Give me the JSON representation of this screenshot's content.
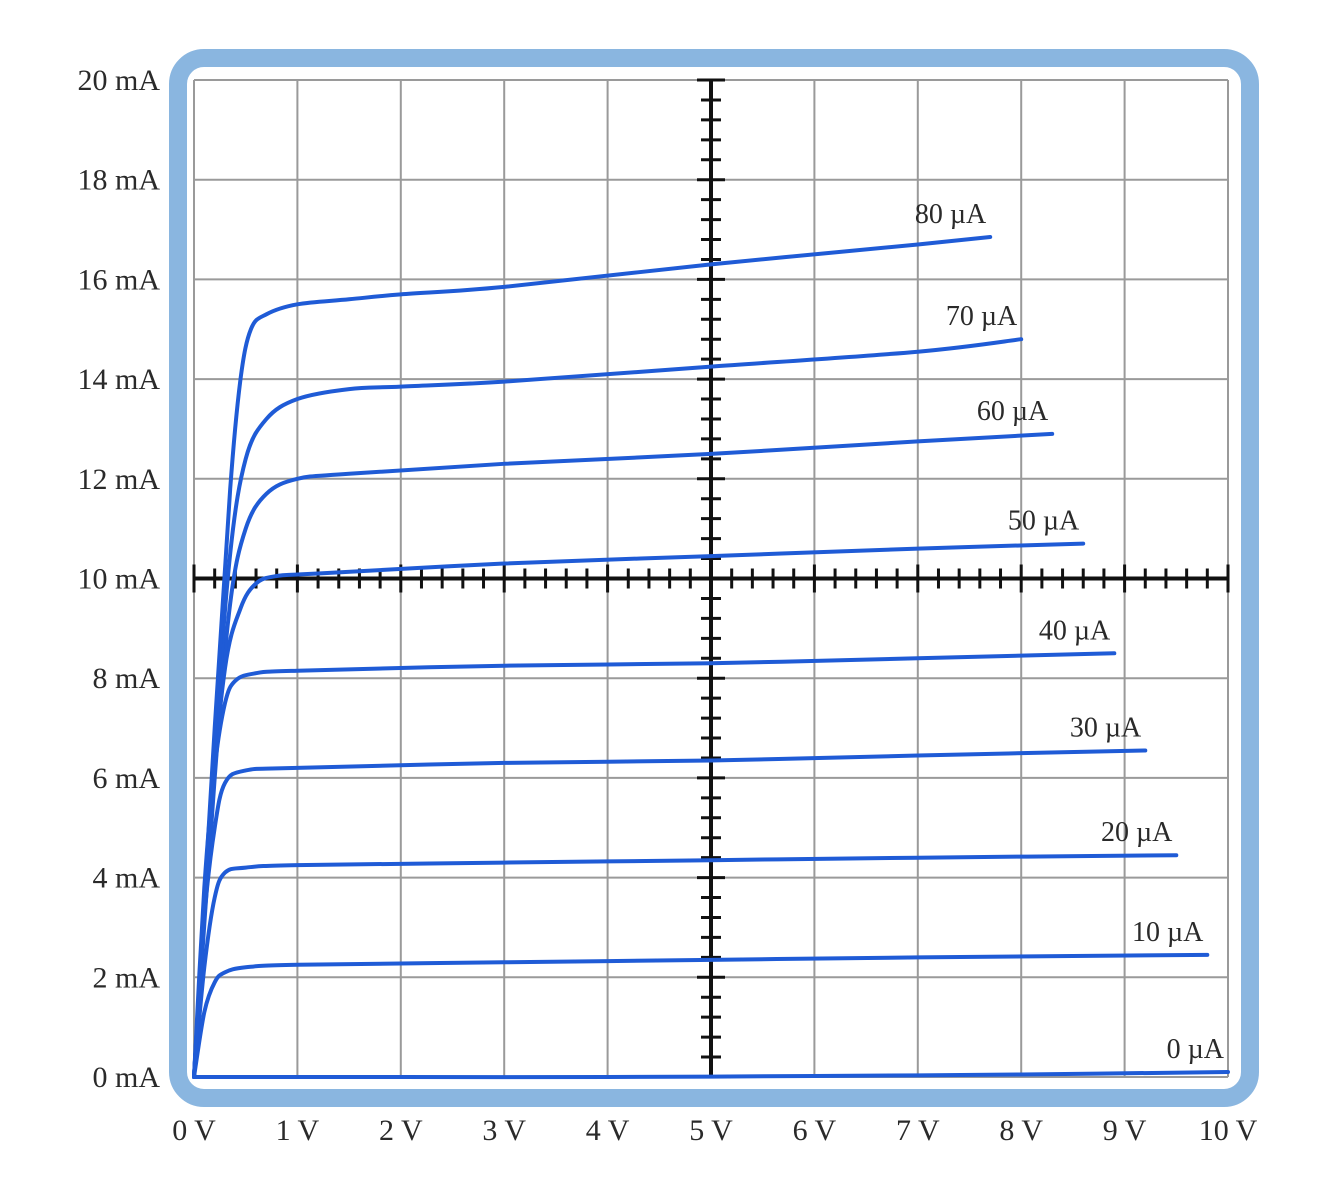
{
  "chart_data": {
    "type": "line",
    "title": "",
    "xlabel": "",
    "ylabel": "",
    "xlim": [
      0,
      10
    ],
    "ylim": [
      0,
      20
    ],
    "grid": true,
    "x_tick_labels": [
      "0 V",
      "1 V",
      "2 V",
      "3 V",
      "4 V",
      "5 V",
      "6 V",
      "7 V",
      "8 V",
      "9 V",
      "10 V"
    ],
    "y_tick_labels": [
      "0 mA",
      "2 mA",
      "4 mA",
      "6 mA",
      "8 mA",
      "10 mA",
      "12 mA",
      "14 mA",
      "16 mA",
      "18 mA",
      "20 mA"
    ],
    "colors": {
      "curve": "#1f5bd6",
      "frame": "#8ab6e0",
      "grid": "#9a9a9a",
      "crosshair": "#111111"
    },
    "series": [
      {
        "name": "0 µA",
        "x": [
          0,
          2,
          4,
          6,
          8,
          10
        ],
        "y": [
          0,
          0,
          0,
          0.02,
          0.05,
          0.1
        ]
      },
      {
        "name": "10 µA",
        "x": [
          0,
          0.1,
          0.2,
          0.3,
          0.5,
          1,
          3,
          5,
          7,
          9.8
        ],
        "y": [
          0,
          1.3,
          1.9,
          2.1,
          2.2,
          2.25,
          2.3,
          2.35,
          2.4,
          2.45
        ]
      },
      {
        "name": "20 µA",
        "x": [
          0,
          0.1,
          0.2,
          0.3,
          0.5,
          1,
          3,
          5,
          7,
          9.5
        ],
        "y": [
          0,
          2.2,
          3.6,
          4.1,
          4.2,
          4.25,
          4.3,
          4.35,
          4.4,
          4.45
        ]
      },
      {
        "name": "30 µA",
        "x": [
          0,
          0.1,
          0.2,
          0.3,
          0.5,
          1,
          3,
          5,
          7,
          9.2
        ],
        "y": [
          0,
          3.2,
          5.0,
          5.9,
          6.15,
          6.2,
          6.3,
          6.35,
          6.45,
          6.55
        ]
      },
      {
        "name": "40 µA",
        "x": [
          0,
          0.1,
          0.2,
          0.3,
          0.4,
          0.6,
          1,
          3,
          5,
          7,
          8.9
        ],
        "y": [
          0,
          3.8,
          6.2,
          7.5,
          7.95,
          8.1,
          8.15,
          8.25,
          8.3,
          8.4,
          8.5
        ]
      },
      {
        "name": "50 µA",
        "x": [
          0,
          0.15,
          0.3,
          0.45,
          0.6,
          0.8,
          1.2,
          3,
          5,
          7,
          8.6
        ],
        "y": [
          0,
          5.0,
          8.2,
          9.4,
          9.9,
          10.05,
          10.1,
          10.3,
          10.45,
          10.6,
          10.7
        ]
      },
      {
        "name": "60 µA",
        "x": [
          0,
          0.2,
          0.35,
          0.5,
          0.7,
          1.0,
          1.5,
          3,
          5,
          7,
          8.3
        ],
        "y": [
          0,
          6.0,
          9.5,
          11.0,
          11.7,
          12.0,
          12.1,
          12.3,
          12.5,
          12.75,
          12.9
        ]
      },
      {
        "name": "70 µA",
        "x": [
          0,
          0.2,
          0.35,
          0.5,
          0.7,
          1.0,
          1.5,
          2,
          3,
          5,
          7,
          8.0
        ],
        "y": [
          0,
          6.5,
          10.5,
          12.4,
          13.2,
          13.6,
          13.8,
          13.85,
          13.95,
          14.25,
          14.55,
          14.8
        ]
      },
      {
        "name": "80 µA",
        "x": [
          0,
          0.2,
          0.35,
          0.45,
          0.55,
          0.7,
          1.0,
          1.5,
          2,
          3,
          5,
          7,
          7.7
        ],
        "y": [
          0,
          7.0,
          11.8,
          14.0,
          15.0,
          15.3,
          15.5,
          15.6,
          15.7,
          15.85,
          16.3,
          16.7,
          16.85
        ]
      }
    ]
  }
}
